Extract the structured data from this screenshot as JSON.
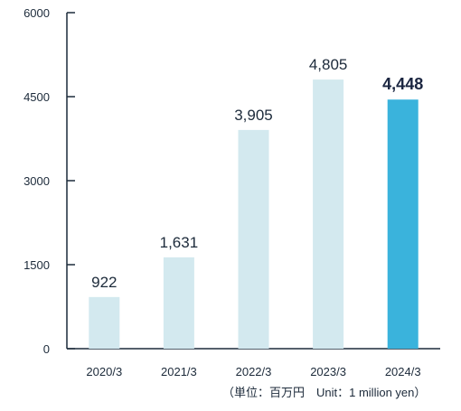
{
  "chart_data": {
    "type": "bar",
    "categories": [
      "2020/3",
      "2021/3",
      "2022/3",
      "2023/3",
      "2024/3"
    ],
    "values": [
      922,
      1631,
      3905,
      4805,
      4448
    ],
    "value_labels": [
      "922",
      "1,631",
      "3,905",
      "4,805",
      "4,448"
    ],
    "highlight_index": 4,
    "ylim": [
      0,
      6000
    ],
    "yticks": [
      0,
      1500,
      3000,
      4500,
      6000
    ],
    "ytick_labels": [
      "0",
      "1500",
      "3000",
      "4500",
      "6000"
    ],
    "grid": false,
    "unit_note": "（単位：百万円　Unit：1 million yen）",
    "colors": {
      "bar": "#d3e9ef",
      "highlight": "#3ab3dc",
      "axis": "#1c2a3a"
    }
  }
}
